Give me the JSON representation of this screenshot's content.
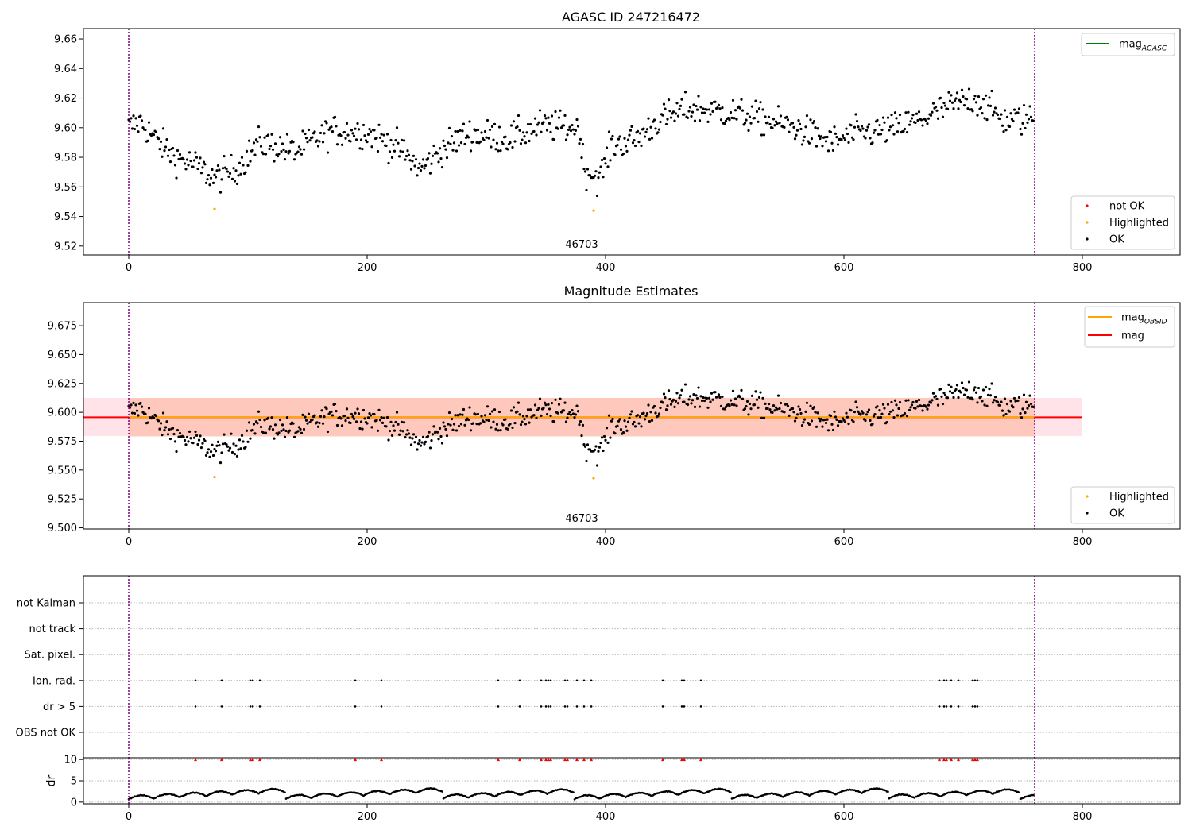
{
  "chart_data": [
    {
      "type": "scatter",
      "title": "AGASC ID 247216472",
      "xlabel": "",
      "ylabel": "",
      "xlim": [
        -38,
        882
      ],
      "ylim": [
        9.514,
        9.667
      ],
      "xticks": [
        0,
        200,
        400,
        600,
        800
      ],
      "yticks": [
        9.52,
        9.54,
        9.56,
        9.58,
        9.6,
        9.62,
        9.64,
        9.66
      ],
      "ytick_labels": [
        "9.52",
        "9.54",
        "9.56",
        "9.58",
        "9.60",
        "9.62",
        "9.64",
        "9.66"
      ],
      "vlines": [
        0,
        760
      ],
      "obsid_label": {
        "text": "46703",
        "x": 380
      },
      "lines": [
        {
          "name": "mag",
          "name_sub": "AGASC",
          "color": "#008000",
          "y": 9.596,
          "visible": false
        }
      ],
      "series": [
        {
          "name": "not OK",
          "color": "#ff0000",
          "points": []
        },
        {
          "name": "Highlighted",
          "color": "#ffa500",
          "points": [
            [
              72,
              9.545
            ],
            [
              390,
              9.544
            ]
          ]
        },
        {
          "name": "OK",
          "color": "#000000",
          "generated": {
            "n": 760,
            "from": 0,
            "to": 760
          }
        }
      ],
      "legend_top": "top-right",
      "legend_bottom": "bottom-right"
    },
    {
      "type": "scatter",
      "title": "Magnitude Estimates",
      "xlabel": "",
      "ylabel": "",
      "xlim": [
        -38,
        882
      ],
      "ylim": [
        9.499,
        9.695
      ],
      "xticks": [
        0,
        200,
        400,
        600,
        800
      ],
      "yticks": [
        9.5,
        9.525,
        9.55,
        9.575,
        9.6,
        9.625,
        9.65,
        9.675
      ],
      "ytick_labels": [
        "9.500",
        "9.525",
        "9.550",
        "9.575",
        "9.600",
        "9.625",
        "9.650",
        "9.675"
      ],
      "vlines": [
        0,
        760
      ],
      "obsid_label": {
        "text": "46703",
        "x": 380
      },
      "lines": [
        {
          "name": "mag",
          "name_sub": "OBSID",
          "color": "#ffa500",
          "y": 9.5958,
          "x": [
            0,
            760
          ]
        },
        {
          "name": "mag",
          "name_sub": "",
          "color": "#ff0000",
          "y": 9.5957,
          "x": [
            -38,
            800
          ]
        }
      ],
      "bands": [
        {
          "color": "#ffc0cb",
          "y": [
            9.5795,
            9.6125
          ],
          "x": [
            -38,
            800
          ]
        },
        {
          "color": "#ffa07a",
          "y": [
            9.579,
            9.6125
          ],
          "x": [
            0,
            760
          ]
        }
      ],
      "series": [
        {
          "name": "Highlighted",
          "color": "#ffa500",
          "points": [
            [
              72,
              9.544
            ],
            [
              390,
              9.543
            ]
          ]
        },
        {
          "name": "OK",
          "color": "#000000",
          "generated": {
            "n": 760,
            "from": 0,
            "to": 760
          }
        }
      ],
      "legend_top": "top-right",
      "legend_bottom": "bottom-right"
    },
    {
      "type": "scatter",
      "title": "",
      "xlabel": "",
      "ylabel": "",
      "xlim": [
        -38,
        882
      ],
      "xticks": [
        0,
        200,
        400,
        600,
        800
      ],
      "vlines": [
        0,
        760
      ],
      "flag_labels": [
        "not Kalman",
        "not track",
        "Sat. pixel.",
        "Ion. rad.",
        "dr > 5",
        "OBS not OK"
      ],
      "flag_points": {
        "Ion. rad.": [
          56,
          78,
          102,
          104,
          110,
          190,
          212,
          310,
          328,
          346,
          350,
          352,
          354,
          366,
          368,
          376,
          382,
          388,
          448,
          464,
          466,
          480,
          680,
          684,
          686,
          690,
          696,
          708,
          710,
          712
        ],
        "dr > 5": [
          56,
          78,
          102,
          104,
          110,
          190,
          212,
          310,
          328,
          346,
          350,
          352,
          354,
          366,
          368,
          376,
          382,
          388,
          448,
          464,
          466,
          480,
          680,
          684,
          686,
          690,
          696,
          708,
          710,
          712
        ]
      }
    },
    {
      "type": "scatter",
      "title": "",
      "xlabel": "",
      "ylabel": "dr",
      "xlim": [
        -38,
        882
      ],
      "ylim": [
        -0.4,
        10.4
      ],
      "xticks": [
        0,
        200,
        400,
        600,
        800
      ],
      "xtick_labels": [
        "0",
        "200",
        "400",
        "600",
        "800"
      ],
      "yticks": [
        0,
        5,
        10
      ],
      "ytick_labels": [
        "0",
        "5",
        "10"
      ],
      "vlines": [
        0,
        760
      ],
      "clipped_markers": {
        "color": "#ff0000",
        "y": 10,
        "x": [
          56,
          78,
          102,
          104,
          110,
          190,
          212,
          310,
          328,
          346,
          350,
          352,
          354,
          366,
          368,
          376,
          382,
          388,
          448,
          464,
          466,
          480,
          680,
          684,
          686,
          690,
          696,
          708,
          710,
          712
        ]
      },
      "series": [
        {
          "name": "dr",
          "color": "#000000",
          "generated": {
            "n": 760,
            "from": 0,
            "to": 760
          }
        }
      ]
    }
  ]
}
